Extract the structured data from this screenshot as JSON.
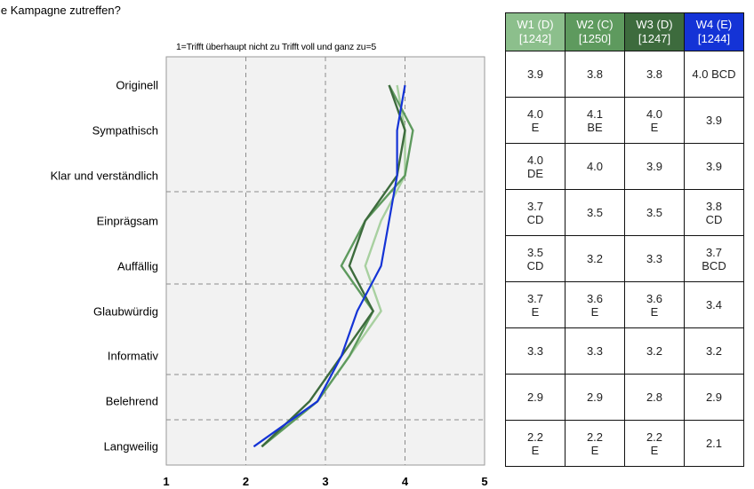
{
  "title": "ie Kampagne zutreffen?",
  "scale_note": "1=Trifft überhaupt nicht zu   Trifft voll und ganz zu=5",
  "table": {
    "headers": [
      {
        "wave": "W1 (D)",
        "n": "[1242]",
        "color": "#8cbf8c"
      },
      {
        "wave": "W2 (C)",
        "n": "[1250]",
        "color": "#5e9a5e"
      },
      {
        "wave": "W3 (D)",
        "n": "[1247]",
        "color": "#3d6b3d"
      },
      {
        "wave": "W4 (E)",
        "n": "[1244]",
        "color": "#1433d6"
      }
    ],
    "rows": [
      [
        "3.9",
        "3.8",
        "3.8",
        "4.0 BCD"
      ],
      [
        "4.0\nE",
        "4.1\nBE",
        "4.0\nE",
        "3.9"
      ],
      [
        "4.0\nDE",
        "4.0",
        "3.9",
        "3.9"
      ],
      [
        "3.7\nCD",
        "3.5",
        "3.5",
        "3.8\nCD"
      ],
      [
        "3.5\nCD",
        "3.2",
        "3.3",
        "3.7\nBCD"
      ],
      [
        "3.7\nE",
        "3.6\nE",
        "3.6\nE",
        "3.4"
      ],
      [
        "3.3",
        "3.3",
        "3.2",
        "3.2"
      ],
      [
        "2.9",
        "2.9",
        "2.8",
        "2.9"
      ],
      [
        "2.2\nE",
        "2.2\nE",
        "2.2\nE",
        "2.1"
      ]
    ]
  },
  "chart_data": {
    "type": "line",
    "orientation": "horizontal",
    "categories": [
      "Originell",
      "Sympathisch",
      "Klar und verständlich",
      "Einprägsam",
      "Auffällig",
      "Glaubwürdig",
      "Informativ",
      "Belehrend",
      "Langweilig"
    ],
    "xlim": [
      1,
      5
    ],
    "xticks": [
      "1",
      "2",
      "3",
      "4",
      "5"
    ],
    "grid": true,
    "series": [
      {
        "name": "W1 (D)",
        "color": "#a8d0a0",
        "values": [
          3.9,
          4.0,
          4.0,
          3.7,
          3.5,
          3.7,
          3.3,
          2.9,
          2.2
        ]
      },
      {
        "name": "W2 (C)",
        "color": "#5e9a5e",
        "values": [
          3.8,
          4.1,
          4.0,
          3.5,
          3.2,
          3.6,
          3.3,
          2.9,
          2.2
        ]
      },
      {
        "name": "W3 (D)",
        "color": "#3d6b3d",
        "values": [
          3.8,
          4.0,
          3.9,
          3.5,
          3.3,
          3.6,
          3.2,
          2.8,
          2.2
        ]
      },
      {
        "name": "W4 (E)",
        "color": "#1433d6",
        "values": [
          4.0,
          3.9,
          3.9,
          3.8,
          3.7,
          3.4,
          3.2,
          2.9,
          2.1
        ]
      }
    ]
  }
}
